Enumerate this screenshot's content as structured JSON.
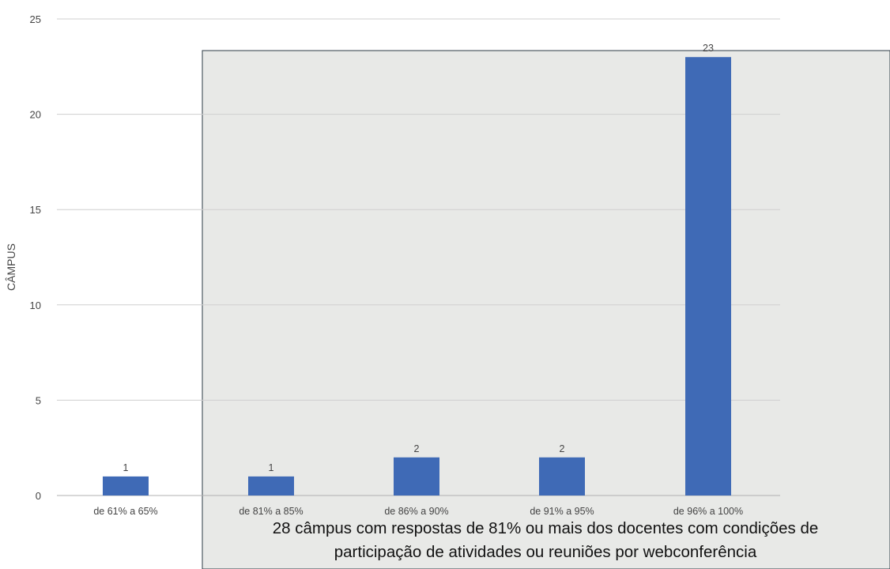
{
  "chart_data": {
    "type": "bar",
    "categories": [
      "de 61% a 65%",
      "de 81% a 85%",
      "de 86% a 90%",
      "de 91% a 95%",
      "de 96% a 100%"
    ],
    "values": [
      1,
      1,
      2,
      2,
      23
    ],
    "data_labels": [
      "1",
      "1",
      "2",
      "2",
      "23"
    ],
    "ylabel": "CÂMPUS",
    "ylim": [
      0,
      25
    ],
    "yticks": [
      0,
      5,
      10,
      15,
      20,
      25
    ],
    "grid": true,
    "legend": "none",
    "colors": {
      "bar": "#3f6ab6",
      "highlight_box": "#e8e9e7",
      "highlight_border": "#2d3a44"
    },
    "annotation": {
      "line1": "28 câmpus com respostas de 81% ou mais dos docentes com condições de",
      "line2": "participação de atividades ou reuniões por webconferência"
    }
  }
}
